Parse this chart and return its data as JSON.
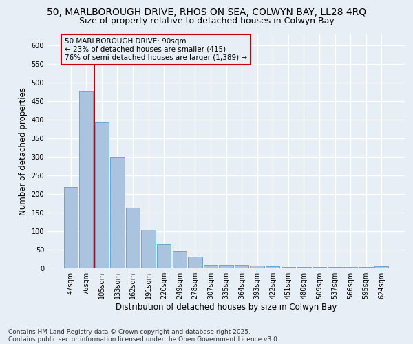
{
  "title": "50, MARLBOROUGH DRIVE, RHOS ON SEA, COLWYN BAY, LL28 4RQ",
  "subtitle": "Size of property relative to detached houses in Colwyn Bay",
  "xlabel": "Distribution of detached houses by size in Colwyn Bay",
  "ylabel": "Number of detached properties",
  "categories": [
    "47sqm",
    "76sqm",
    "105sqm",
    "133sqm",
    "162sqm",
    "191sqm",
    "220sqm",
    "249sqm",
    "278sqm",
    "307sqm",
    "335sqm",
    "364sqm",
    "393sqm",
    "422sqm",
    "451sqm",
    "480sqm",
    "509sqm",
    "537sqm",
    "566sqm",
    "595sqm",
    "624sqm"
  ],
  "values": [
    218,
    478,
    393,
    301,
    163,
    104,
    65,
    47,
    31,
    10,
    10,
    10,
    7,
    5,
    3,
    3,
    3,
    3,
    3,
    3,
    5
  ],
  "bar_color": "#aac4e0",
  "bar_edge_color": "#5a9fd4",
  "background_color": "#e8eef5",
  "grid_color": "#ffffff",
  "annotation_line1": "50 MARLBOROUGH DRIVE: 90sqm",
  "annotation_line2": "← 23% of detached houses are smaller (415)",
  "annotation_line3": "76% of semi-detached houses are larger (1,389) →",
  "red_line_x": 1.5,
  "annotation_box_color": "#cc0000",
  "ylim": [
    0,
    630
  ],
  "yticks": [
    0,
    50,
    100,
    150,
    200,
    250,
    300,
    350,
    400,
    450,
    500,
    550,
    600
  ],
  "footer": "Contains HM Land Registry data © Crown copyright and database right 2025.\nContains public sector information licensed under the Open Government Licence v3.0.",
  "title_fontsize": 10,
  "subtitle_fontsize": 9,
  "xlabel_fontsize": 8.5,
  "ylabel_fontsize": 8.5,
  "tick_fontsize": 7,
  "annotation_fontsize": 7.5,
  "footer_fontsize": 6.5
}
